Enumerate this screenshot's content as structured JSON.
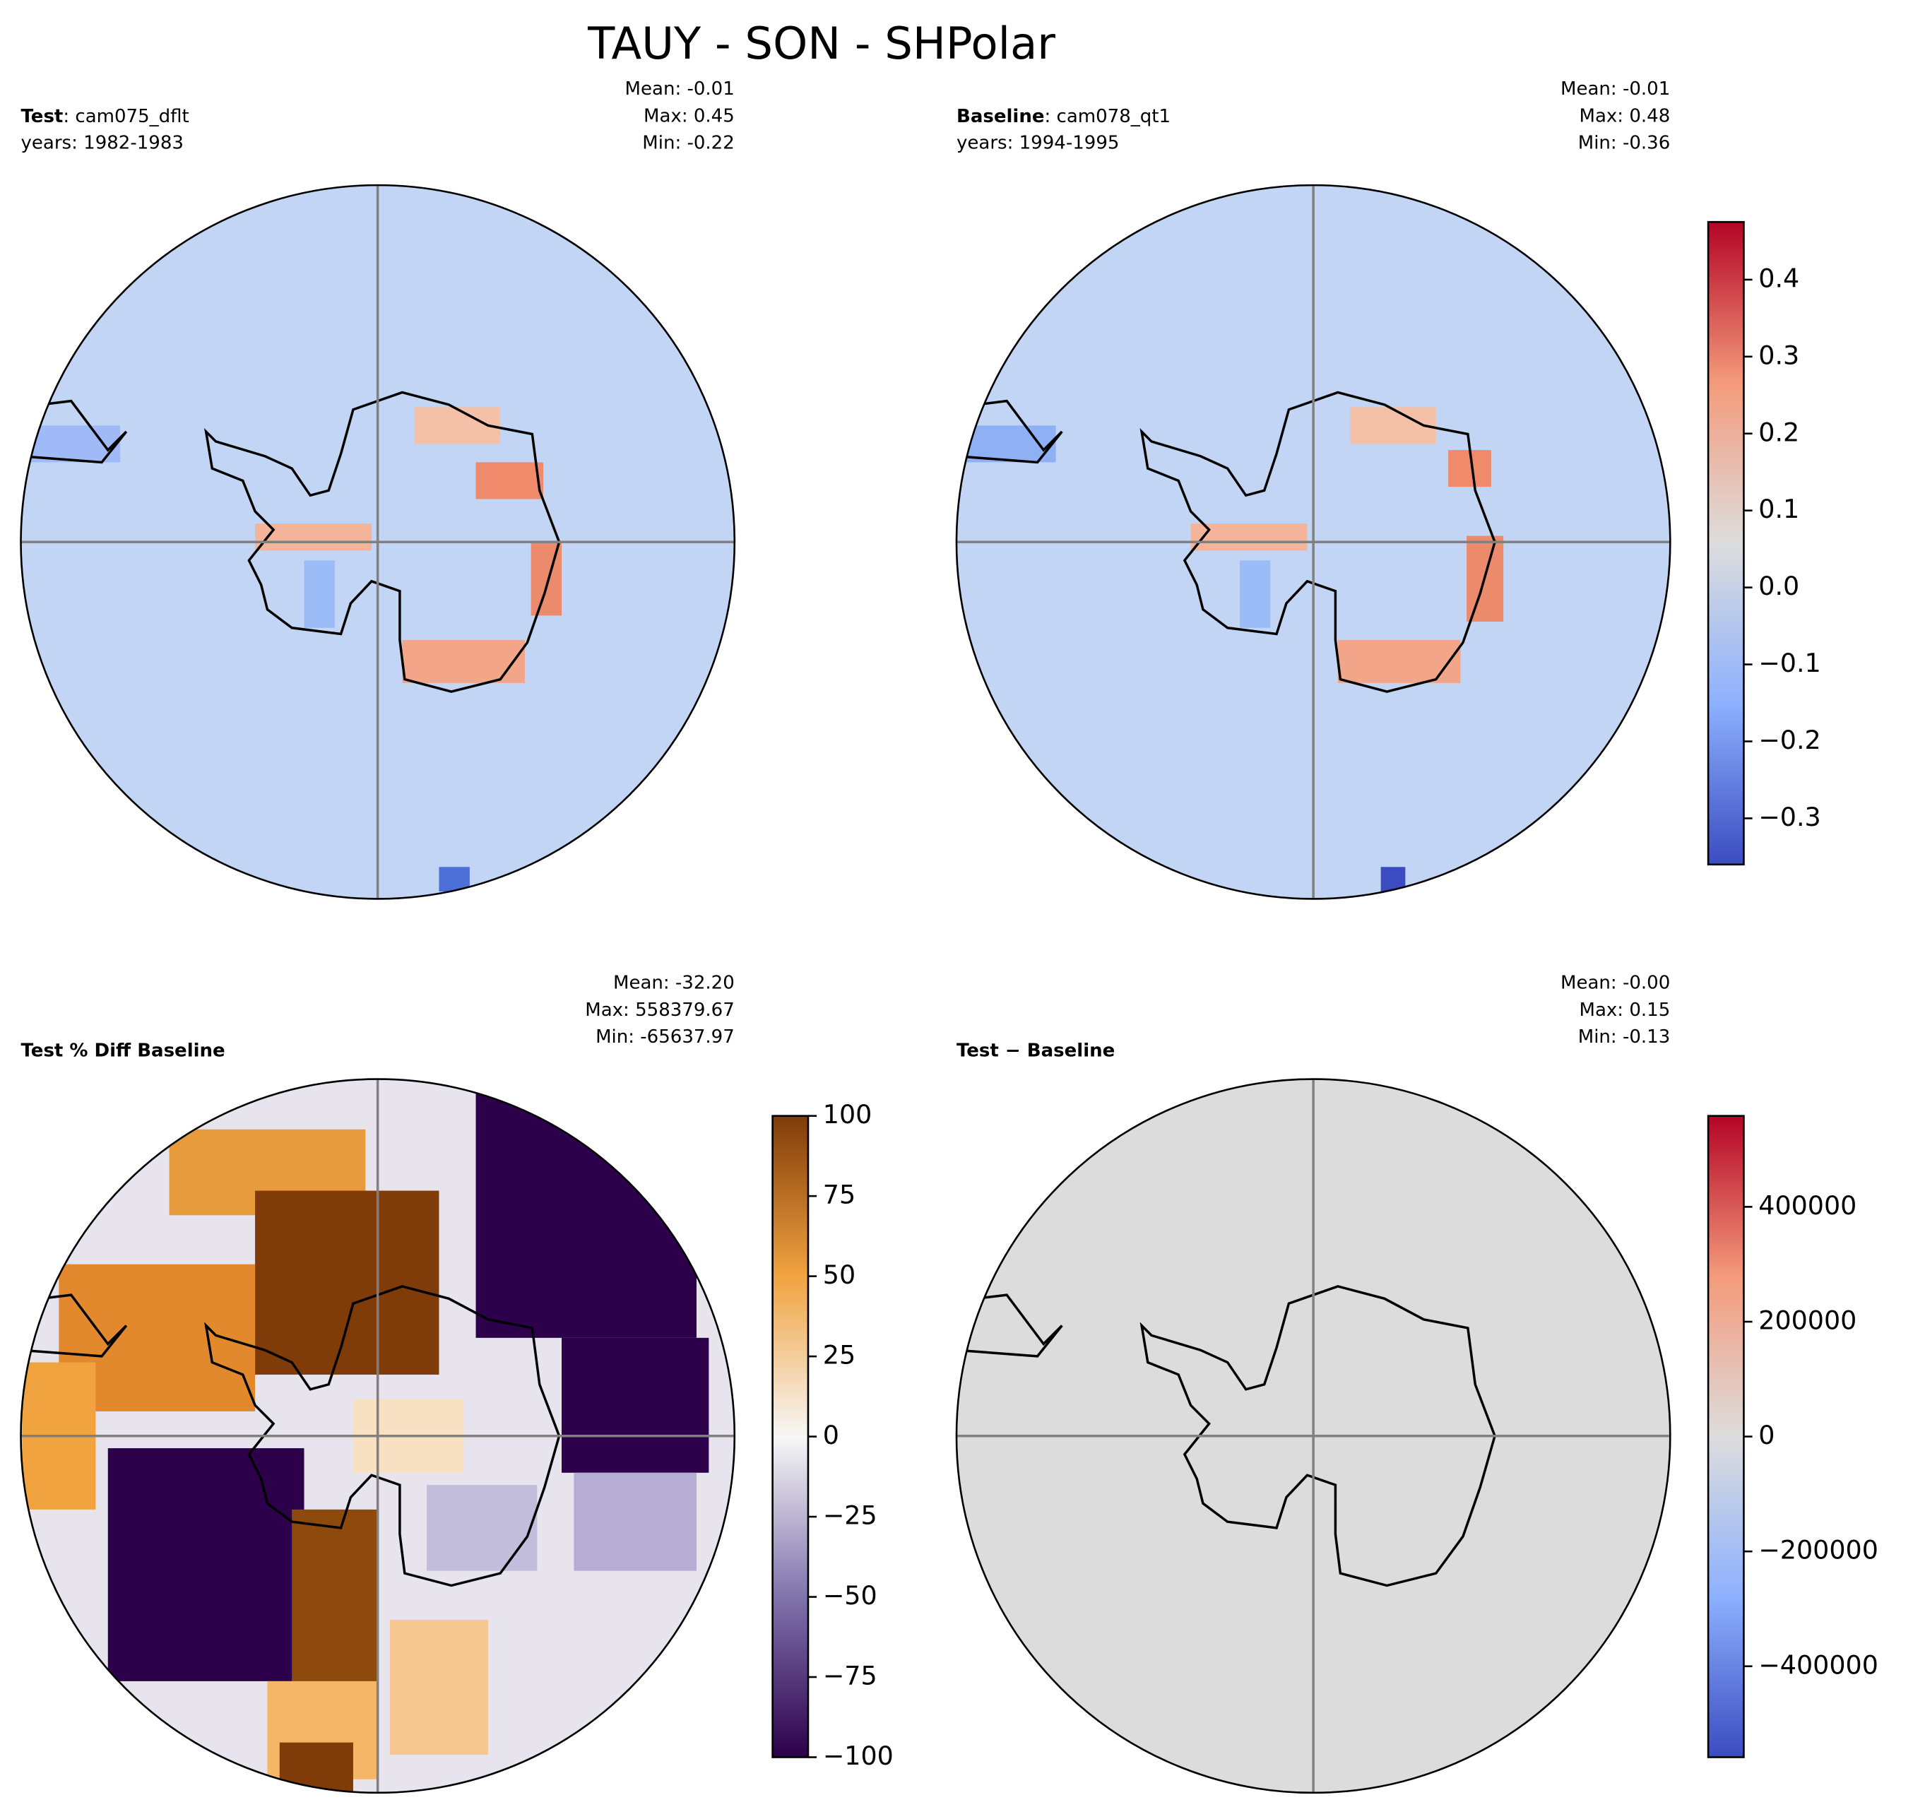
{
  "title": "TAUY - SON - SHPolar",
  "panels": [
    {
      "name": "Test",
      "case": ": cam075_dflt",
      "years": "years: 1982-1983",
      "stats": [
        "Mean: -0.01",
        "Max:  0.45",
        "Min: -0.22"
      ]
    },
    {
      "name": "Baseline",
      "case": ": cam078_qt1",
      "years": "years: 1994-1995",
      "stats": [
        "Mean: -0.01",
        "Max:  0.48",
        "Min: -0.36"
      ]
    },
    {
      "name": "Test % Diff Baseline",
      "stats": [
        "Mean: -32.20",
        "Max: 558379.67",
        "Min: -65637.97"
      ]
    },
    {
      "name": "Test − Baseline",
      "stats": [
        "Mean: -0.00",
        "Max:  0.15",
        "Min: -0.13"
      ]
    }
  ],
  "colorbars": [
    {
      "ylim": [
        -0.36,
        0.475
      ],
      "cmap": [
        "#3b4cc0",
        "#8db0fe",
        "#dddddd",
        "#f49a7b",
        "#b40426"
      ],
      "yticks": [
        {
          "value": -0.3,
          "label": "−0.3"
        },
        {
          "value": -0.2,
          "label": "−0.2"
        },
        {
          "value": -0.1,
          "label": "−0.1"
        },
        {
          "value": 0,
          "label": "0.0"
        },
        0.1,
        0.2,
        0.3,
        0.4
      ]
    },
    {
      "ylim": [
        -100,
        100
      ],
      "cmap": [
        "#2d004b",
        "#8073ac",
        "#f7f7f7",
        "#f1a340",
        "#7f3b08"
      ],
      "yticks": [
        {
          "value": -100,
          "label": "−100"
        },
        {
          "value": -75,
          "label": "−75"
        },
        {
          "value": -50,
          "label": "−50"
        },
        {
          "value": -25,
          "label": "−25"
        },
        0,
        25,
        50,
        75,
        100
      ]
    },
    {
      "ylim": [
        -558379.67,
        558379.67
      ],
      "cmap": [
        "#3b4cc0",
        "#8db0fe",
        "#dddddd",
        "#f49a7b",
        "#b40426"
      ],
      "yticks": [
        {
          "value": -400000,
          "label": "−400000"
        },
        {
          "value": -200000,
          "label": "−200000"
        },
        0,
        200000,
        400000
      ]
    }
  ]
}
